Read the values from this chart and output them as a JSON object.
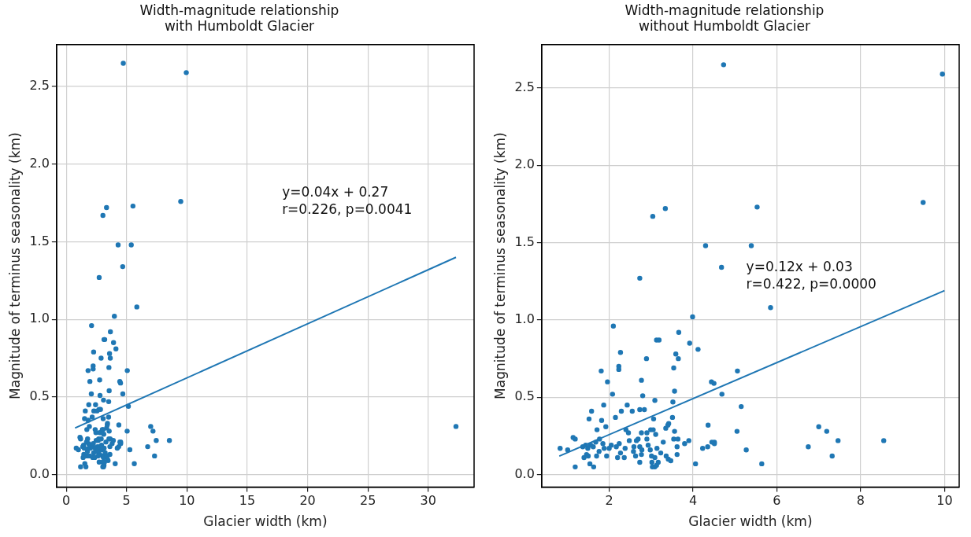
{
  "chart_data": [
    {
      "type": "scatter",
      "title": "Width-magnitude relationship\nwith Humboldt Glacier",
      "xlabel": "Glacier width (km)",
      "ylabel": "Magnitude of terminus seasonality (km)",
      "xlim": [
        -0.8,
        33.8
      ],
      "xticks": [
        0,
        5,
        10,
        15,
        20,
        25,
        30
      ],
      "ylim": [
        -0.08,
        2.77
      ],
      "yticks": [
        {
          "value": 0,
          "label": "0.0"
        },
        {
          "value": 0.5,
          "label": "0.5"
        },
        {
          "value": 1,
          "label": "1.0"
        },
        {
          "value": 1.5,
          "label": "1.5"
        },
        {
          "value": 2,
          "label": "2.0"
        },
        {
          "value": 2.5,
          "label": "2.5"
        }
      ],
      "grid": true,
      "annotations": [
        "y=0.04x + 0.27\nr=0.226, p=0.0041"
      ],
      "series": [
        {
          "marker": "circle",
          "color": "#1f77b4",
          "x": [
            4.73,
            9.95,
            3.04,
            3.34,
            5.53,
            9.49,
            4.3,
            5.39,
            4.68,
            2.73,
            5.85,
            3.99,
            2.1,
            3.66,
            3.13,
            3.19,
            3.92,
            4.12,
            2.27,
            3.59,
            3.65,
            2.89,
            2.23,
            2.23,
            3.54,
            1.81,
            5.06,
            2.77,
            1.96,
            4.44,
            4.5,
            2.08,
            2.8,
            4.69,
            3.56,
            3.09,
            3.52,
            5.15,
            1.87,
            2.43,
            1.58,
            2.29,
            2.55,
            2.73,
            2.84,
            1.52,
            2.15,
            3.51,
            1.82,
            3.06,
            4.36,
            1.92,
            1.71,
            3.42,
            7.0,
            7.19,
            5.05,
            2.4,
            2.46,
            2.99,
            3.05,
            3.35,
            3.4,
            3.56,
            2.77,
            3.11,
            2.9,
            7.46,
            8.55,
            1.14,
            1.19,
            3.64,
            3.54,
            3.9,
            3.8,
            4.51,
            4.51,
            4.45,
            4.35,
            4.23,
            6.75,
            5.27,
            7.32,
            4.06,
            5.64,
            3.62,
            3.62,
            0.83,
            1.01,
            1.19,
            1.63,
            1.54,
            1.37,
            1.44,
            1.49,
            1.46,
            1.4,
            1.68,
            1.77,
            1.85,
            1.88,
            1.76,
            1.7,
            1.94,
            2.0,
            2.05,
            2.17,
            2.24,
            2.27,
            2.2,
            2.36,
            2.38,
            2.48,
            2.59,
            2.65,
            2.69,
            2.73,
            2.77,
            2.73,
            2.78,
            2.93,
            2.98,
            3.01,
            3.02,
            3.09,
            3.14,
            3.17,
            3.23,
            3.36,
            3.41,
            3.47,
            3.29,
            3.09,
            3.03,
            3.13,
            2.9,
            2.58,
            2.63,
            32.3
          ],
          "values": [
            2.65,
            2.59,
            1.67,
            1.72,
            1.73,
            1.76,
            1.48,
            1.48,
            1.34,
            1.27,
            1.08,
            1.02,
            0.96,
            0.92,
            0.87,
            0.87,
            0.85,
            0.81,
            0.79,
            0.78,
            0.75,
            0.75,
            0.7,
            0.68,
            0.69,
            0.67,
            0.67,
            0.61,
            0.6,
            0.6,
            0.59,
            0.52,
            0.51,
            0.52,
            0.54,
            0.48,
            0.47,
            0.44,
            0.45,
            0.45,
            0.41,
            0.41,
            0.41,
            0.42,
            0.42,
            0.36,
            0.37,
            0.37,
            0.35,
            0.36,
            0.32,
            0.31,
            0.29,
            0.33,
            0.31,
            0.28,
            0.28,
            0.29,
            0.27,
            0.29,
            0.29,
            0.3,
            0.32,
            0.28,
            0.27,
            0.26,
            0.27,
            0.22,
            0.22,
            0.24,
            0.23,
            0.23,
            0.23,
            0.22,
            0.2,
            0.21,
            0.2,
            0.21,
            0.18,
            0.17,
            0.18,
            0.16,
            0.12,
            0.07,
            0.07,
            0.18,
            0.13,
            0.17,
            0.16,
            0.05,
            0.05,
            0.07,
            0.18,
            0.19,
            0.17,
            0.13,
            0.11,
            0.21,
            0.23,
            0.2,
            0.17,
            0.15,
            0.12,
            0.12,
            0.17,
            0.19,
            0.18,
            0.2,
            0.14,
            0.11,
            0.11,
            0.17,
            0.22,
            0.18,
            0.22,
            0.23,
            0.18,
            0.13,
            0.08,
            0.16,
            0.19,
            0.16,
            0.12,
            0.08,
            0.11,
            0.17,
            0.08,
            0.14,
            0.12,
            0.1,
            0.09,
            0.21,
            0.05,
            0.05,
            0.06,
            0.23,
            0.15,
            0.12,
            0.31
          ]
        },
        {
          "type": "line",
          "color": "#1f77b4",
          "x": [
            0.73,
            32.3
          ],
          "values": [
            0.3,
            1.4
          ]
        }
      ]
    },
    {
      "type": "scatter",
      "title": "Width-magnitude relationship\nwithout Humboldt Glacier",
      "xlabel": "Glacier width (km)",
      "ylabel": "Magnitude of terminus seasonality (km)",
      "xlim": [
        0.39,
        10.35
      ],
      "xticks": [
        2,
        4,
        6,
        8,
        10
      ],
      "ylim": [
        -0.08,
        2.78
      ],
      "yticks": [
        {
          "value": 0,
          "label": "0.0"
        },
        {
          "value": 0.5,
          "label": "0.5"
        },
        {
          "value": 1,
          "label": "1.0"
        },
        {
          "value": 1.5,
          "label": "1.5"
        },
        {
          "value": 2,
          "label": "2.0"
        },
        {
          "value": 2.5,
          "label": "2.5"
        }
      ],
      "grid": true,
      "annotations": [
        "y=0.12x + 0.03\nr=0.422, p=0.0000"
      ],
      "series": [
        {
          "marker": "circle",
          "color": "#1f77b4",
          "x": [
            4.73,
            9.95,
            3.04,
            3.34,
            5.53,
            9.49,
            4.3,
            5.39,
            4.68,
            2.73,
            5.85,
            3.99,
            2.1,
            3.66,
            3.13,
            3.19,
            3.92,
            4.12,
            2.27,
            3.59,
            3.65,
            2.89,
            2.23,
            2.23,
            3.54,
            1.81,
            5.06,
            2.77,
            1.96,
            4.44,
            4.5,
            2.08,
            2.8,
            4.69,
            3.56,
            3.09,
            3.52,
            5.15,
            1.87,
            2.43,
            1.58,
            2.29,
            2.55,
            2.73,
            2.84,
            1.52,
            2.15,
            3.51,
            1.82,
            3.06,
            4.36,
            1.92,
            1.71,
            3.42,
            7.0,
            7.19,
            5.05,
            2.4,
            2.46,
            2.99,
            3.05,
            3.35,
            3.4,
            3.56,
            2.77,
            3.11,
            2.9,
            7.46,
            8.55,
            1.14,
            1.19,
            3.64,
            3.54,
            3.9,
            3.8,
            4.51,
            4.51,
            4.45,
            4.35,
            4.23,
            6.75,
            5.27,
            7.32,
            4.06,
            5.64,
            3.62,
            3.62,
            0.83,
            1.01,
            1.19,
            1.63,
            1.54,
            1.37,
            1.44,
            1.49,
            1.56,
            1.46,
            1.4,
            1.5,
            1.62,
            1.68,
            1.77,
            1.85,
            1.88,
            1.76,
            1.7,
            1.94,
            2.0,
            2.05,
            2.17,
            2.24,
            2.27,
            2.2,
            2.36,
            2.38,
            2.48,
            2.59,
            2.65,
            2.69,
            2.73,
            2.77,
            2.73,
            2.78,
            2.93,
            2.98,
            3.01,
            3.02,
            3.09,
            3.14,
            3.17,
            3.23,
            3.36,
            3.41,
            3.47,
            3.29,
            3.09,
            3.03,
            3.13,
            2.9,
            2.58,
            2.63
          ],
          "values": [
            2.65,
            2.59,
            1.67,
            1.72,
            1.73,
            1.76,
            1.48,
            1.48,
            1.34,
            1.27,
            1.08,
            1.02,
            0.96,
            0.92,
            0.87,
            0.87,
            0.85,
            0.81,
            0.79,
            0.78,
            0.75,
            0.75,
            0.7,
            0.68,
            0.69,
            0.67,
            0.67,
            0.61,
            0.6,
            0.6,
            0.59,
            0.52,
            0.51,
            0.52,
            0.54,
            0.48,
            0.47,
            0.44,
            0.45,
            0.45,
            0.41,
            0.41,
            0.41,
            0.42,
            0.42,
            0.36,
            0.37,
            0.37,
            0.35,
            0.36,
            0.32,
            0.31,
            0.29,
            0.33,
            0.31,
            0.28,
            0.28,
            0.29,
            0.27,
            0.29,
            0.29,
            0.3,
            0.32,
            0.28,
            0.27,
            0.26,
            0.27,
            0.22,
            0.22,
            0.24,
            0.23,
            0.23,
            0.23,
            0.22,
            0.2,
            0.21,
            0.2,
            0.21,
            0.18,
            0.17,
            0.18,
            0.16,
            0.12,
            0.07,
            0.07,
            0.18,
            0.13,
            0.17,
            0.16,
            0.05,
            0.05,
            0.07,
            0.18,
            0.19,
            0.17,
            0.19,
            0.13,
            0.11,
            0.12,
            0.18,
            0.21,
            0.23,
            0.2,
            0.17,
            0.15,
            0.12,
            0.12,
            0.17,
            0.19,
            0.18,
            0.2,
            0.14,
            0.11,
            0.11,
            0.17,
            0.22,
            0.18,
            0.22,
            0.23,
            0.18,
            0.13,
            0.08,
            0.16,
            0.19,
            0.16,
            0.12,
            0.08,
            0.11,
            0.17,
            0.08,
            0.14,
            0.12,
            0.1,
            0.09,
            0.21,
            0.05,
            0.05,
            0.06,
            0.23,
            0.15,
            0.12
          ]
        },
        {
          "type": "line",
          "color": "#1f77b4",
          "x": [
            0.81,
            10
          ],
          "values": [
            0.12,
            1.19
          ]
        }
      ]
    }
  ]
}
